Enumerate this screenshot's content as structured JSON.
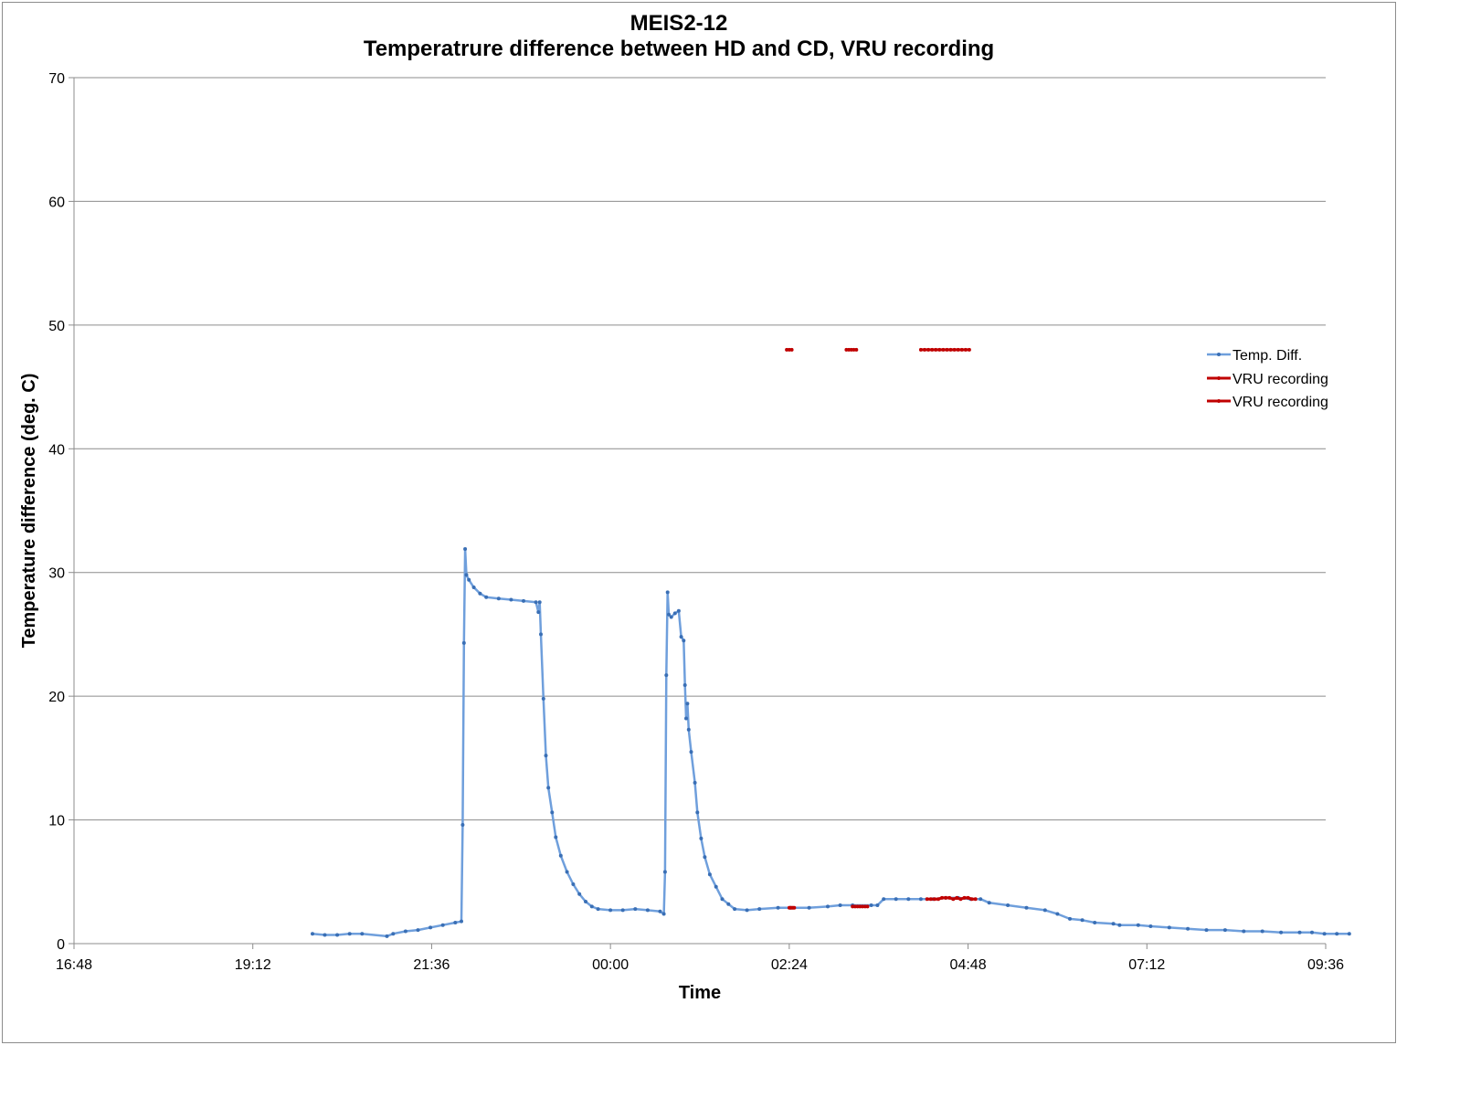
{
  "chart_data": {
    "type": "line",
    "title": "MEIS2-12",
    "subtitle": "Temperatrure difference between HD and CD, VRU recording",
    "xlabel": "Time",
    "ylabel": "Temperature difference (deg. C)",
    "x_ticks": [
      "16:48",
      "19:12",
      "21:36",
      "00:00",
      "02:24",
      "04:48",
      "07:12",
      "09:36"
    ],
    "xlim": [
      "16:48",
      "09:36 (+1 day)"
    ],
    "y_ticks": [
      "0",
      "10",
      "20",
      "30",
      "40",
      "50",
      "60",
      "70"
    ],
    "ylim": [
      0,
      70
    ],
    "grid": "horizontal",
    "legend_position": "right",
    "series": [
      {
        "name": "Temp. Diff.",
        "color": "#6f9fdc",
        "marker_color": "#3a6fb5",
        "points": [
          [
            "20:00",
            0.8
          ],
          [
            "20:10",
            0.7
          ],
          [
            "20:20",
            0.7
          ],
          [
            "20:30",
            0.8
          ],
          [
            "20:40",
            0.8
          ],
          [
            "21:00",
            0.6
          ],
          [
            "21:05",
            0.8
          ],
          [
            "21:15",
            1.0
          ],
          [
            "21:25",
            1.1
          ],
          [
            "21:35",
            1.3
          ],
          [
            "21:45",
            1.5
          ],
          [
            "21:55",
            1.7
          ],
          [
            "22:00",
            1.8
          ],
          [
            "22:01",
            9.6
          ],
          [
            "22:02",
            24.3
          ],
          [
            "22:03",
            31.9
          ],
          [
            "22:04",
            29.8
          ],
          [
            "22:06",
            29.4
          ],
          [
            "22:10",
            28.8
          ],
          [
            "22:15",
            28.3
          ],
          [
            "22:20",
            28.0
          ],
          [
            "22:30",
            27.9
          ],
          [
            "22:40",
            27.8
          ],
          [
            "22:50",
            27.7
          ],
          [
            "23:00",
            27.6
          ],
          [
            "23:02",
            26.8
          ],
          [
            "23:03",
            27.6
          ],
          [
            "23:04",
            25.0
          ],
          [
            "23:06",
            19.8
          ],
          [
            "23:08",
            15.2
          ],
          [
            "23:10",
            12.6
          ],
          [
            "23:13",
            10.6
          ],
          [
            "23:16",
            8.6
          ],
          [
            "23:20",
            7.1
          ],
          [
            "23:25",
            5.8
          ],
          [
            "23:30",
            4.8
          ],
          [
            "23:35",
            4.0
          ],
          [
            "23:40",
            3.4
          ],
          [
            "23:45",
            3.0
          ],
          [
            "23:50",
            2.8
          ],
          [
            "00:00",
            2.7
          ],
          [
            "00:10",
            2.7
          ],
          [
            "00:20",
            2.8
          ],
          [
            "00:30",
            2.7
          ],
          [
            "00:40",
            2.6
          ],
          [
            "00:43",
            2.4
          ],
          [
            "00:44",
            5.8
          ],
          [
            "00:45",
            21.7
          ],
          [
            "00:46",
            28.4
          ],
          [
            "00:47",
            26.6
          ],
          [
            "00:49",
            26.4
          ],
          [
            "00:52",
            26.7
          ],
          [
            "00:55",
            26.9
          ],
          [
            "00:57",
            24.8
          ],
          [
            "00:59",
            24.5
          ],
          [
            "01:00",
            20.9
          ],
          [
            "01:01",
            18.2
          ],
          [
            "01:02",
            19.4
          ],
          [
            "01:03",
            17.3
          ],
          [
            "01:05",
            15.5
          ],
          [
            "01:08",
            13.0
          ],
          [
            "01:10",
            10.6
          ],
          [
            "01:13",
            8.5
          ],
          [
            "01:16",
            7.0
          ],
          [
            "01:20",
            5.6
          ],
          [
            "01:25",
            4.6
          ],
          [
            "01:30",
            3.6
          ],
          [
            "01:35",
            3.2
          ],
          [
            "01:40",
            2.8
          ],
          [
            "01:50",
            2.7
          ],
          [
            "02:00",
            2.8
          ],
          [
            "02:15",
            2.9
          ],
          [
            "02:25",
            2.9
          ],
          [
            "02:40",
            2.9
          ],
          [
            "02:55",
            3.0
          ],
          [
            "03:05",
            3.1
          ],
          [
            "03:15",
            3.1
          ],
          [
            "03:30",
            3.1
          ],
          [
            "03:35",
            3.1
          ],
          [
            "03:40",
            3.6
          ],
          [
            "03:50",
            3.6
          ],
          [
            "04:00",
            3.6
          ],
          [
            "04:10",
            3.6
          ],
          [
            "04:20",
            3.6
          ],
          [
            "04:30",
            3.7
          ],
          [
            "04:40",
            3.7
          ],
          [
            "04:50",
            3.6
          ],
          [
            "04:58",
            3.6
          ],
          [
            "05:05",
            3.3
          ],
          [
            "05:20",
            3.1
          ],
          [
            "05:35",
            2.9
          ],
          [
            "05:50",
            2.7
          ],
          [
            "06:00",
            2.4
          ],
          [
            "06:10",
            2.0
          ],
          [
            "06:20",
            1.9
          ],
          [
            "06:30",
            1.7
          ],
          [
            "06:45",
            1.6
          ],
          [
            "06:50",
            1.5
          ],
          [
            "07:05",
            1.5
          ],
          [
            "07:15",
            1.4
          ],
          [
            "07:30",
            1.3
          ],
          [
            "07:45",
            1.2
          ],
          [
            "08:00",
            1.1
          ],
          [
            "08:15",
            1.1
          ],
          [
            "08:30",
            1.0
          ],
          [
            "08:45",
            1.0
          ],
          [
            "09:00",
            0.9
          ],
          [
            "09:15",
            0.9
          ],
          [
            "09:25",
            0.9
          ],
          [
            "09:35",
            0.8
          ],
          [
            "09:45",
            0.8
          ],
          [
            "09:55",
            0.8
          ]
        ]
      },
      {
        "name": "VRU recording",
        "color": "#c00000",
        "marker_color": "#c00000",
        "segments": [
          [
            [
              "02:24",
              2.9
            ],
            [
              "02:25",
              2.9
            ],
            [
              "02:26",
              2.9
            ],
            [
              "02:27",
              2.9
            ],
            [
              "02:28",
              2.9
            ]
          ],
          [
            [
              "03:15",
              3.0
            ],
            [
              "03:17",
              3.0
            ],
            [
              "03:19",
              3.0
            ],
            [
              "03:21",
              3.0
            ],
            [
              "03:23",
              3.0
            ],
            [
              "03:25",
              3.0
            ],
            [
              "03:27",
              3.0
            ]
          ],
          [
            [
              "04:15",
              3.6
            ],
            [
              "04:18",
              3.6
            ],
            [
              "04:21",
              3.6
            ],
            [
              "04:24",
              3.6
            ],
            [
              "04:27",
              3.7
            ],
            [
              "04:30",
              3.7
            ],
            [
              "04:33",
              3.7
            ],
            [
              "04:36",
              3.6
            ],
            [
              "04:39",
              3.7
            ],
            [
              "04:42",
              3.6
            ],
            [
              "04:45",
              3.7
            ],
            [
              "04:48",
              3.7
            ],
            [
              "04:51",
              3.6
            ],
            [
              "04:54",
              3.6
            ]
          ]
        ]
      },
      {
        "name": "VRU recording",
        "color": "#c00000",
        "marker_color": "#c00000",
        "segments": [
          [
            [
              "02:22",
              48
            ],
            [
              "02:24",
              48
            ],
            [
              "02:26",
              48
            ]
          ],
          [
            [
              "03:10",
              48
            ],
            [
              "03:12",
              48
            ],
            [
              "03:14",
              48
            ],
            [
              "03:16",
              48
            ],
            [
              "03:18",
              48
            ]
          ],
          [
            [
              "04:10",
              48
            ],
            [
              "04:13",
              48
            ],
            [
              "04:16",
              48
            ],
            [
              "04:19",
              48
            ],
            [
              "04:22",
              48
            ],
            [
              "04:25",
              48
            ],
            [
              "04:28",
              48
            ],
            [
              "04:31",
              48
            ],
            [
              "04:34",
              48
            ],
            [
              "04:37",
              48
            ],
            [
              "04:40",
              48
            ],
            [
              "04:43",
              48
            ],
            [
              "04:46",
              48
            ],
            [
              "04:49",
              48
            ]
          ]
        ]
      }
    ]
  }
}
